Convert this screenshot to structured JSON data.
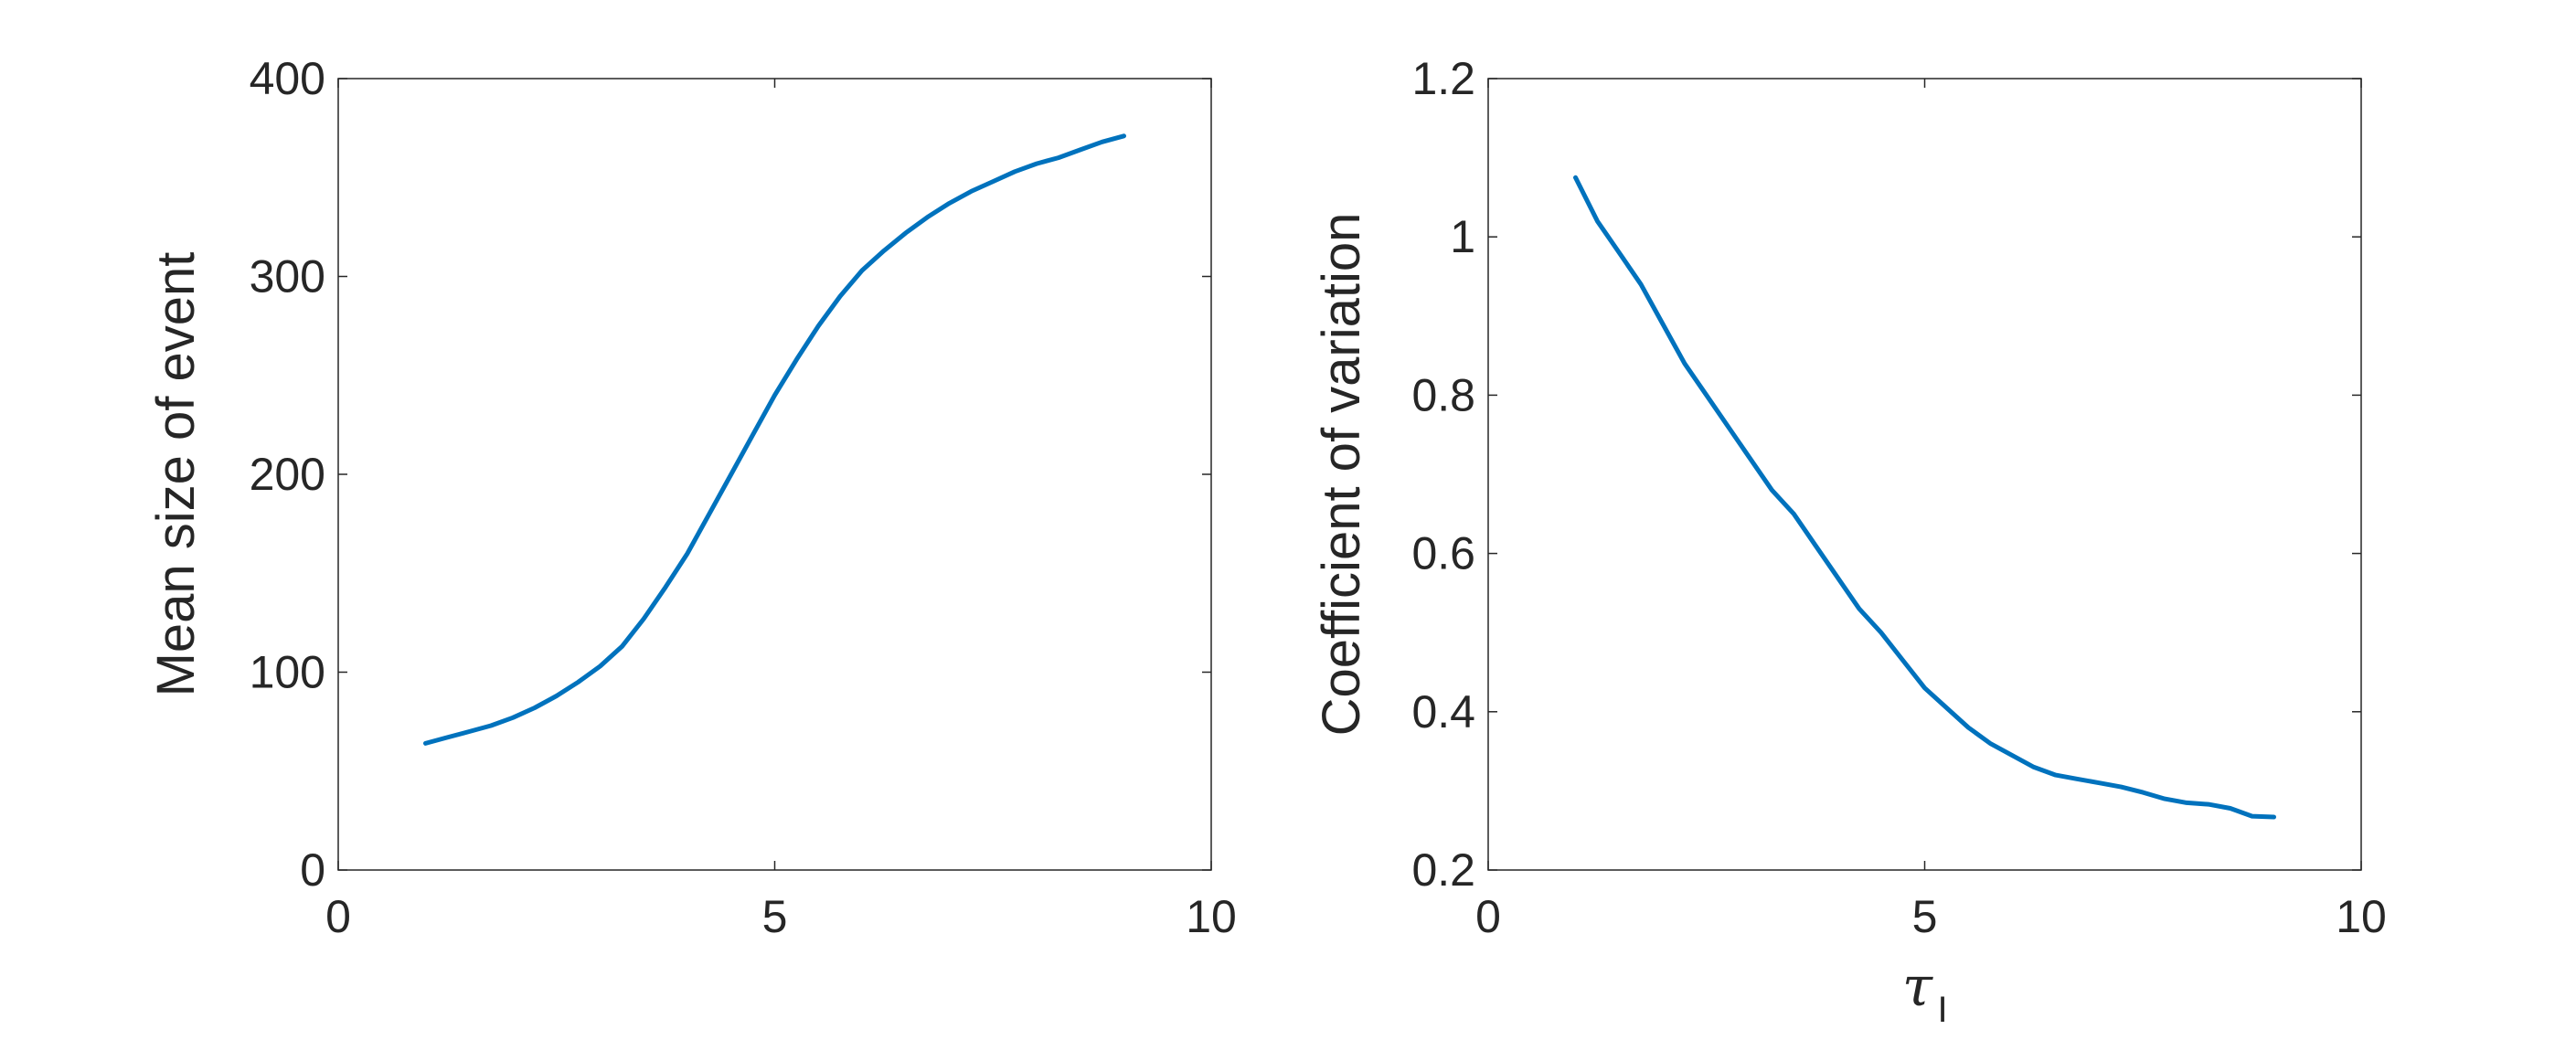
{
  "chart_data": [
    {
      "type": "line",
      "title": "",
      "xlabel": "",
      "ylabel": "Mean size of event",
      "xlim": [
        0,
        10
      ],
      "ylim": [
        0,
        400
      ],
      "xticks": [
        "0",
        "5",
        "10"
      ],
      "yticks": [
        "0",
        "100",
        "200",
        "300",
        "400"
      ],
      "grid": false,
      "color": "#0072BD",
      "series": [
        {
          "x": [
            1.0,
            1.25,
            1.5,
            1.75,
            2.0,
            2.25,
            2.5,
            2.75,
            3.0,
            3.25,
            3.5,
            3.75,
            4.0,
            4.25,
            4.5,
            4.75,
            5.0,
            5.25,
            5.5,
            5.75,
            6.0,
            6.25,
            6.5,
            6.75,
            7.0,
            7.25,
            7.5,
            7.75,
            8.0,
            8.25,
            8.5,
            8.75,
            9.0
          ],
          "y": [
            64,
            67,
            70,
            73,
            77,
            82,
            88,
            95,
            103,
            113,
            127,
            143,
            160,
            180,
            200,
            220,
            240,
            258,
            275,
            290,
            303,
            313,
            322,
            330,
            337,
            343,
            348,
            353,
            357,
            360,
            364,
            368,
            371
          ]
        }
      ]
    },
    {
      "type": "line",
      "title": "",
      "xlabel": "τ",
      "xlabel_subscript": "I",
      "ylabel": "Coefficient of variation",
      "xlim": [
        0,
        10
      ],
      "ylim": [
        0.2,
        1.2
      ],
      "xticks": [
        "0",
        "5",
        "10"
      ],
      "yticks": [
        "0.2",
        "0.4",
        "0.6",
        "0.8",
        "1",
        "1.2"
      ],
      "grid": false,
      "color": "#0072BD",
      "series": [
        {
          "x": [
            1.0,
            1.25,
            1.5,
            1.75,
            2.0,
            2.25,
            2.5,
            2.75,
            3.0,
            3.25,
            3.5,
            3.75,
            4.0,
            4.25,
            4.5,
            4.75,
            5.0,
            5.25,
            5.5,
            5.75,
            6.0,
            6.25,
            6.5,
            6.75,
            7.0,
            7.25,
            7.5,
            7.75,
            8.0,
            8.25,
            8.5,
            8.75,
            9.0
          ],
          "y": [
            1.075,
            1.02,
            0.98,
            0.94,
            0.89,
            0.84,
            0.8,
            0.76,
            0.72,
            0.68,
            0.65,
            0.61,
            0.57,
            0.53,
            0.5,
            0.465,
            0.43,
            0.405,
            0.38,
            0.36,
            0.345,
            0.33,
            0.32,
            0.315,
            0.31,
            0.305,
            0.298,
            0.29,
            0.285,
            0.283,
            0.278,
            0.268,
            0.267
          ]
        }
      ]
    }
  ]
}
